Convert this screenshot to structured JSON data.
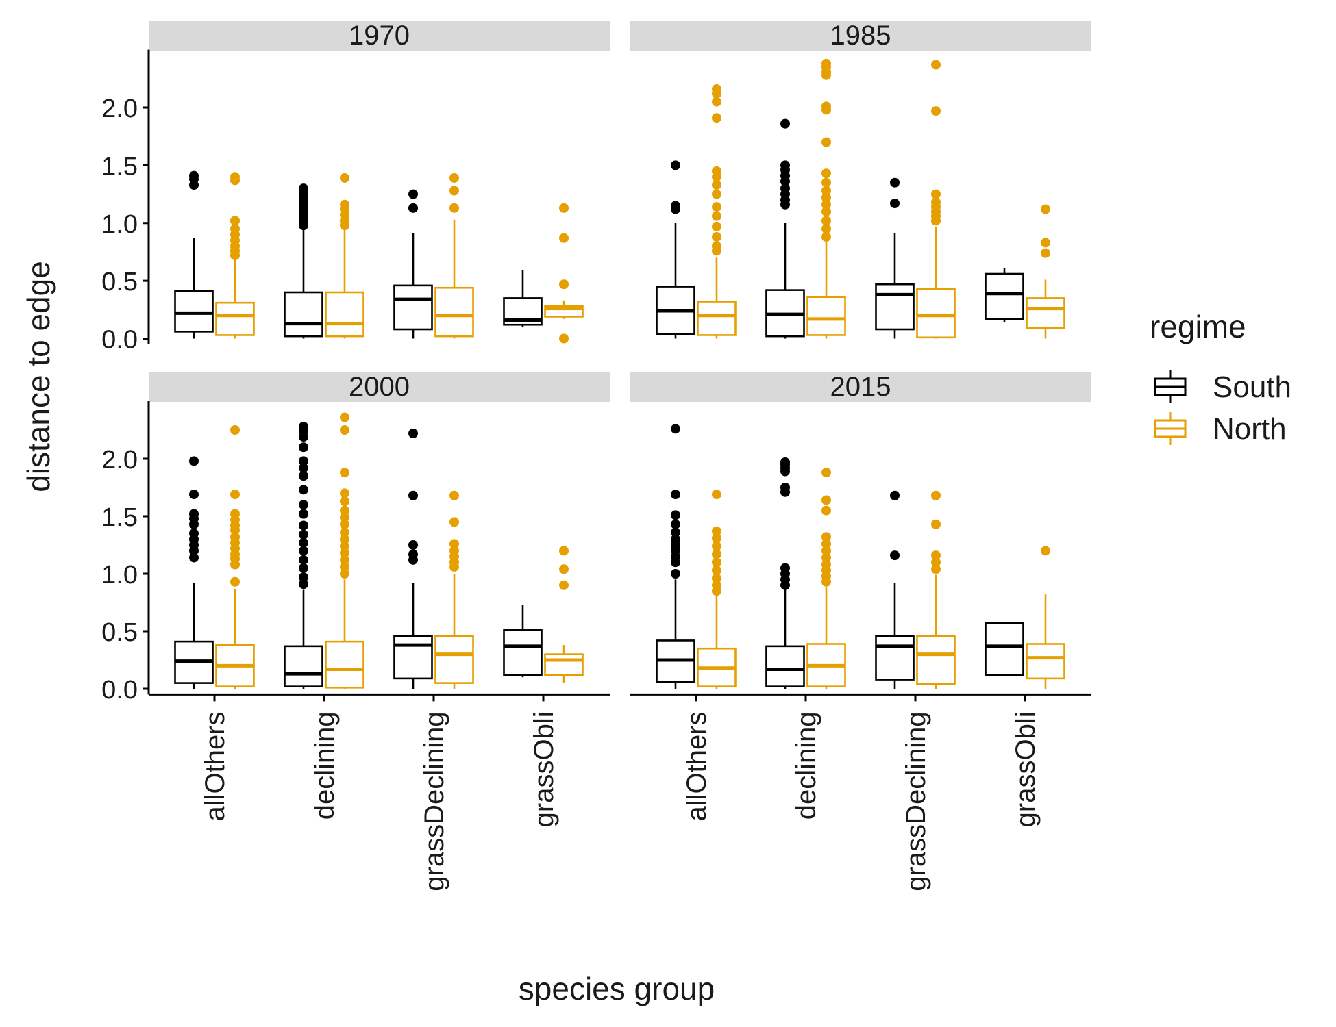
{
  "chart_data": {
    "type": "box",
    "facets": [
      "1970",
      "1985",
      "2000",
      "2015"
    ],
    "categories": [
      "allOthers",
      "declining",
      "grassDeclining",
      "grassObli"
    ],
    "xlabel": "species group",
    "ylabel": "distance to edge",
    "ylim": [
      -0.05,
      2.5
    ],
    "yticks": [
      0.0,
      0.5,
      1.0,
      1.5,
      2.0
    ],
    "ytick_labels": [
      "0.0",
      "0.5",
      "1.0",
      "1.5",
      "2.0"
    ],
    "grid": false,
    "legend": {
      "title": "regime",
      "position": "right",
      "items": [
        {
          "name": "South",
          "color": "#000000"
        },
        {
          "name": "North",
          "color": "#E69F00"
        }
      ]
    },
    "series": [
      {
        "name": "South",
        "color": "#000000"
      },
      {
        "name": "North",
        "color": "#E69F00"
      }
    ],
    "panels": [
      {
        "facet": "1970",
        "boxes": [
          {
            "category": "allOthers",
            "series": "South",
            "min": 0.0,
            "q1": 0.06,
            "median": 0.22,
            "q3": 0.41,
            "max": 0.87,
            "outliers": [
              1.33,
              1.38,
              1.41
            ]
          },
          {
            "category": "allOthers",
            "series": "North",
            "min": 0.0,
            "q1": 0.03,
            "median": 0.2,
            "q3": 0.31,
            "max": 0.7,
            "outliers": [
              0.72,
              0.76,
              0.8,
              0.85,
              0.9,
              0.95,
              1.02,
              1.37,
              1.4
            ]
          },
          {
            "category": "declining",
            "series": "South",
            "min": 0.0,
            "q1": 0.02,
            "median": 0.13,
            "q3": 0.4,
            "max": 0.95,
            "outliers": [
              0.98,
              1.02,
              1.06,
              1.1,
              1.14,
              1.18,
              1.22,
              1.26,
              1.3
            ]
          },
          {
            "category": "declining",
            "series": "North",
            "min": 0.0,
            "q1": 0.02,
            "median": 0.13,
            "q3": 0.4,
            "max": 0.95,
            "outliers": [
              0.98,
              1.02,
              1.07,
              1.12,
              1.16,
              1.39
            ]
          },
          {
            "category": "grassDeclining",
            "series": "South",
            "min": 0.0,
            "q1": 0.08,
            "median": 0.34,
            "q3": 0.46,
            "max": 0.91,
            "outliers": [
              1.13,
              1.25
            ]
          },
          {
            "category": "grassDeclining",
            "series": "North",
            "min": 0.0,
            "q1": 0.02,
            "median": 0.2,
            "q3": 0.44,
            "max": 1.03,
            "outliers": [
              1.13,
              1.28,
              1.39
            ]
          },
          {
            "category": "grassObli",
            "series": "South",
            "min": 0.1,
            "q1": 0.12,
            "median": 0.16,
            "q3": 0.35,
            "max": 0.59,
            "outliers": []
          },
          {
            "category": "grassObli",
            "series": "North",
            "min": 0.17,
            "q1": 0.19,
            "median": 0.26,
            "q3": 0.28,
            "max": 0.33,
            "outliers": [
              0.0,
              0.47,
              0.87,
              1.13
            ]
          }
        ]
      },
      {
        "facet": "1985",
        "boxes": [
          {
            "category": "allOthers",
            "series": "South",
            "min": 0.0,
            "q1": 0.04,
            "median": 0.24,
            "q3": 0.45,
            "max": 1.0,
            "outliers": [
              1.12,
              1.15,
              1.5
            ]
          },
          {
            "category": "allOthers",
            "series": "North",
            "min": 0.0,
            "q1": 0.03,
            "median": 0.2,
            "q3": 0.32,
            "max": 0.7,
            "outliers": [
              0.76,
              0.8,
              0.88,
              0.97,
              1.06,
              1.14,
              1.25,
              1.33,
              1.4,
              1.45,
              1.91,
              2.05,
              2.12,
              2.16
            ]
          },
          {
            "category": "declining",
            "series": "South",
            "min": 0.0,
            "q1": 0.02,
            "median": 0.21,
            "q3": 0.42,
            "max": 1.0,
            "outliers": [
              1.16,
              1.2,
              1.25,
              1.3,
              1.36,
              1.41,
              1.46,
              1.5,
              1.86
            ]
          },
          {
            "category": "declining",
            "series": "North",
            "min": 0.0,
            "q1": 0.03,
            "median": 0.17,
            "q3": 0.36,
            "max": 0.84,
            "outliers": [
              0.88,
              0.95,
              1.02,
              1.1,
              1.16,
              1.22,
              1.28,
              1.35,
              1.43,
              1.7,
              1.98,
              2.01,
              2.28,
              2.31,
              2.35,
              2.38
            ]
          },
          {
            "category": "grassDeclining",
            "series": "South",
            "min": 0.0,
            "q1": 0.08,
            "median": 0.38,
            "q3": 0.47,
            "max": 0.91,
            "outliers": [
              1.17,
              1.35
            ]
          },
          {
            "category": "grassDeclining",
            "series": "North",
            "min": 0.0,
            "q1": 0.01,
            "median": 0.2,
            "q3": 0.43,
            "max": 0.97,
            "outliers": [
              1.02,
              1.06,
              1.1,
              1.14,
              1.18,
              1.25,
              1.97,
              2.37
            ]
          },
          {
            "category": "grassObli",
            "series": "South",
            "min": 0.14,
            "q1": 0.17,
            "median": 0.39,
            "q3": 0.56,
            "max": 0.61,
            "outliers": []
          },
          {
            "category": "grassObli",
            "series": "North",
            "min": 0.0,
            "q1": 0.09,
            "median": 0.26,
            "q3": 0.35,
            "max": 0.51,
            "outliers": [
              0.74,
              0.83,
              1.12
            ]
          }
        ]
      },
      {
        "facet": "2000",
        "boxes": [
          {
            "category": "allOthers",
            "series": "South",
            "min": 0.0,
            "q1": 0.05,
            "median": 0.24,
            "q3": 0.41,
            "max": 0.92,
            "outliers": [
              1.14,
              1.2,
              1.25,
              1.3,
              1.35,
              1.43,
              1.48,
              1.52,
              1.69,
              1.98
            ]
          },
          {
            "category": "allOthers",
            "series": "North",
            "min": 0.0,
            "q1": 0.02,
            "median": 0.2,
            "q3": 0.38,
            "max": 0.87,
            "outliers": [
              0.93,
              1.08,
              1.13,
              1.17,
              1.22,
              1.27,
              1.32,
              1.38,
              1.42,
              1.47,
              1.52,
              1.69,
              2.25
            ]
          },
          {
            "category": "declining",
            "series": "South",
            "min": 0.0,
            "q1": 0.02,
            "median": 0.13,
            "q3": 0.37,
            "max": 0.86,
            "outliers": [
              0.91,
              0.97,
              1.05,
              1.12,
              1.2,
              1.27,
              1.34,
              1.42,
              1.52,
              1.6,
              1.73,
              1.85,
              1.92,
              1.98,
              2.1,
              2.19,
              2.24,
              2.28
            ]
          },
          {
            "category": "declining",
            "series": "North",
            "min": 0.0,
            "q1": 0.01,
            "median": 0.17,
            "q3": 0.41,
            "max": 0.95,
            "outliers": [
              1.0,
              1.06,
              1.12,
              1.18,
              1.24,
              1.3,
              1.36,
              1.43,
              1.49,
              1.55,
              1.63,
              1.7,
              1.88,
              2.25,
              2.36
            ]
          },
          {
            "category": "grassDeclining",
            "series": "South",
            "min": 0.0,
            "q1": 0.09,
            "median": 0.38,
            "q3": 0.46,
            "max": 0.92,
            "outliers": [
              1.12,
              1.17,
              1.25,
              1.68,
              2.22
            ]
          },
          {
            "category": "grassDeclining",
            "series": "North",
            "min": 0.0,
            "q1": 0.05,
            "median": 0.3,
            "q3": 0.46,
            "max": 1.0,
            "outliers": [
              1.06,
              1.1,
              1.15,
              1.2,
              1.26,
              1.45,
              1.68
            ]
          },
          {
            "category": "grassObli",
            "series": "South",
            "min": 0.1,
            "q1": 0.12,
            "median": 0.37,
            "q3": 0.51,
            "max": 0.73,
            "outliers": []
          },
          {
            "category": "grassObli",
            "series": "North",
            "min": 0.05,
            "q1": 0.12,
            "median": 0.25,
            "q3": 0.3,
            "max": 0.38,
            "outliers": [
              0.9,
              1.04,
              1.2
            ]
          }
        ]
      },
      {
        "facet": "2015",
        "boxes": [
          {
            "category": "allOthers",
            "series": "South",
            "min": 0.0,
            "q1": 0.06,
            "median": 0.25,
            "q3": 0.42,
            "max": 0.95,
            "outliers": [
              1.0,
              1.1,
              1.15,
              1.2,
              1.25,
              1.3,
              1.36,
              1.43,
              1.51,
              1.69,
              2.26
            ]
          },
          {
            "category": "allOthers",
            "series": "North",
            "min": 0.0,
            "q1": 0.02,
            "median": 0.18,
            "q3": 0.35,
            "max": 0.82,
            "outliers": [
              0.85,
              0.9,
              0.96,
              1.03,
              1.1,
              1.17,
              1.24,
              1.31,
              1.37,
              1.69
            ]
          },
          {
            "category": "declining",
            "series": "South",
            "min": 0.0,
            "q1": 0.02,
            "median": 0.17,
            "q3": 0.37,
            "max": 0.88,
            "outliers": [
              0.9,
              0.95,
              1.0,
              1.05,
              1.71,
              1.75,
              1.89,
              1.92,
              1.95,
              1.97
            ]
          },
          {
            "category": "declining",
            "series": "North",
            "min": 0.0,
            "q1": 0.02,
            "median": 0.2,
            "q3": 0.39,
            "max": 0.88,
            "outliers": [
              0.93,
              0.98,
              1.03,
              1.08,
              1.14,
              1.2,
              1.26,
              1.32,
              1.55,
              1.64,
              1.88
            ]
          },
          {
            "category": "grassDeclining",
            "series": "South",
            "min": 0.0,
            "q1": 0.08,
            "median": 0.37,
            "q3": 0.46,
            "max": 0.92,
            "outliers": [
              1.16,
              1.68
            ]
          },
          {
            "category": "grassDeclining",
            "series": "North",
            "min": 0.0,
            "q1": 0.04,
            "median": 0.3,
            "q3": 0.46,
            "max": 0.99,
            "outliers": [
              1.04,
              1.1,
              1.16,
              1.43,
              1.68
            ]
          },
          {
            "category": "grassObli",
            "series": "South",
            "min": 0.12,
            "q1": 0.12,
            "median": 0.37,
            "q3": 0.57,
            "max": 0.58,
            "outliers": []
          },
          {
            "category": "grassObli",
            "series": "North",
            "min": 0.0,
            "q1": 0.09,
            "median": 0.27,
            "q3": 0.39,
            "max": 0.82,
            "outliers": [
              1.2
            ]
          }
        ]
      }
    ]
  }
}
